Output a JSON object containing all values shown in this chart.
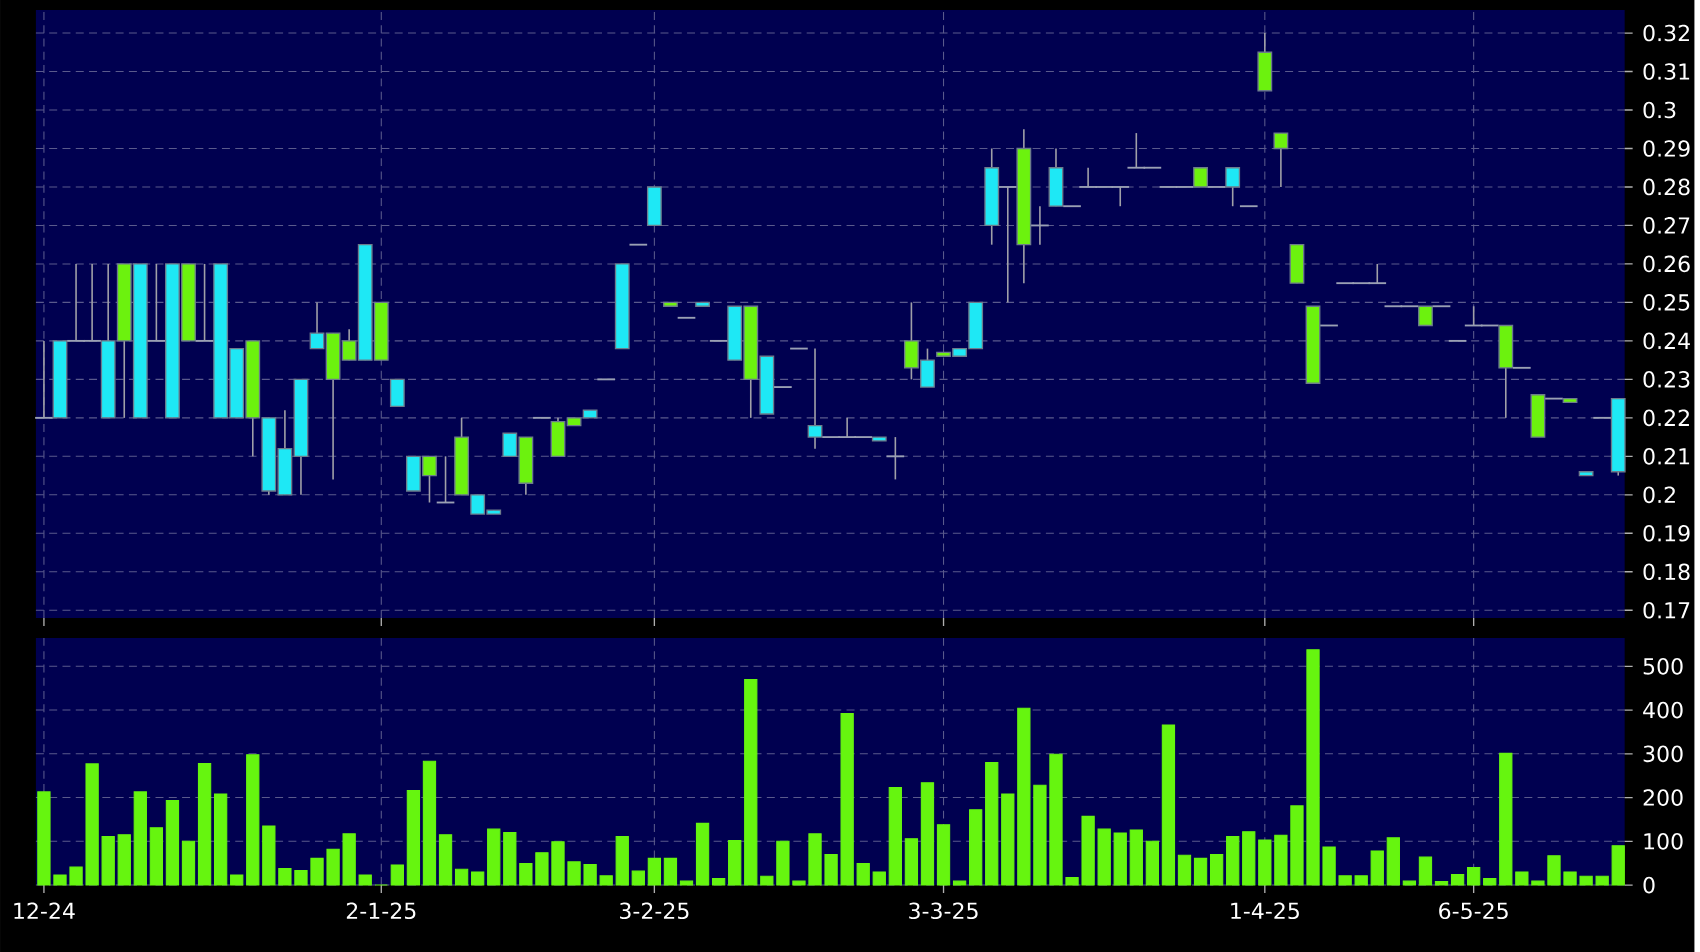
{
  "chart_data": [
    {
      "type": "candlestick",
      "categories": [
        null,
        null,
        null,
        null,
        null,
        null,
        null,
        null,
        null,
        null,
        null,
        null,
        null,
        null,
        null,
        null,
        null,
        null,
        null,
        null,
        null,
        null,
        null,
        null,
        null,
        null,
        null,
        null,
        null,
        null,
        null,
        null,
        null,
        null,
        null,
        null,
        null,
        null,
        null,
        null,
        null,
        null,
        null,
        null,
        null,
        null,
        null,
        null,
        null,
        null,
        null,
        null,
        null,
        null,
        null,
        null,
        null,
        null,
        null,
        null,
        null,
        null,
        null,
        null,
        null,
        null,
        null,
        null,
        null,
        null,
        null,
        null,
        null,
        null,
        null,
        null,
        null,
        null,
        null,
        null,
        null,
        null,
        null,
        null,
        null,
        null,
        null,
        null,
        null,
        null,
        null,
        null,
        null,
        null,
        null,
        null,
        null,
        null,
        null
      ],
      "ohlc": [
        [
          0.22,
          0.24,
          0.22,
          0.22
        ],
        [
          0.22,
          0.24,
          0.22,
          0.24
        ],
        [
          0.24,
          0.26,
          0.24,
          0.24
        ],
        [
          0.24,
          0.26,
          0.24,
          0.24
        ],
        [
          0.22,
          0.26,
          0.22,
          0.24
        ],
        [
          0.26,
          0.26,
          0.22,
          0.24
        ],
        [
          0.22,
          0.26,
          0.22,
          0.26
        ],
        [
          0.24,
          0.26,
          0.24,
          0.24
        ],
        [
          0.22,
          0.26,
          0.22,
          0.26
        ],
        [
          0.26,
          0.26,
          0.24,
          0.24
        ],
        [
          0.24,
          0.26,
          0.24,
          0.24
        ],
        [
          0.22,
          0.26,
          0.22,
          0.26
        ],
        [
          0.22,
          0.238,
          0.22,
          0.238
        ],
        [
          0.24,
          0.24,
          0.21,
          0.22
        ],
        [
          0.201,
          0.22,
          0.2,
          0.22
        ],
        [
          0.2,
          0.222,
          0.2,
          0.212
        ],
        [
          0.21,
          0.23,
          0.2,
          0.23
        ],
        [
          0.238,
          0.25,
          0.238,
          0.242
        ],
        [
          0.242,
          0.242,
          0.204,
          0.23
        ],
        [
          0.24,
          0.243,
          0.235,
          0.235
        ],
        [
          0.235,
          0.265,
          0.235,
          0.265
        ],
        [
          0.25,
          0.25,
          0.235,
          0.235
        ],
        [
          0.223,
          0.23,
          0.223,
          0.23
        ],
        [
          0.201,
          0.21,
          0.201,
          0.21
        ],
        [
          0.21,
          0.21,
          0.198,
          0.205
        ],
        [
          0.198,
          0.21,
          0.198,
          0.198
        ],
        [
          0.215,
          0.22,
          0.2,
          0.2
        ],
        [
          0.195,
          0.2,
          0.195,
          0.2
        ],
        [
          0.195,
          0.196,
          0.195,
          0.196
        ],
        [
          0.21,
          0.216,
          0.21,
          0.216
        ],
        [
          0.215,
          0.215,
          0.2,
          0.203
        ],
        [
          0.22,
          0.22,
          0.22,
          0.22
        ],
        [
          0.219,
          0.22,
          0.21,
          0.21
        ],
        [
          0.22,
          0.22,
          0.218,
          0.218
        ],
        [
          0.22,
          0.222,
          0.22,
          0.222
        ],
        [
          0.23,
          0.23,
          0.23,
          0.23
        ],
        [
          0.238,
          0.26,
          0.238,
          0.26
        ],
        [
          0.265,
          0.265,
          0.265,
          0.265
        ],
        [
          0.27,
          0.28,
          0.27,
          0.28
        ],
        [
          0.25,
          0.25,
          0.249,
          0.249
        ],
        [
          0.246,
          0.246,
          0.246,
          0.246
        ],
        [
          0.249,
          0.25,
          0.249,
          0.25
        ],
        [
          0.24,
          0.24,
          0.24,
          0.24
        ],
        [
          0.235,
          0.249,
          0.235,
          0.249
        ],
        [
          0.249,
          0.249,
          0.22,
          0.23
        ],
        [
          0.221,
          0.236,
          0.221,
          0.236
        ],
        [
          0.228,
          0.228,
          0.228,
          0.228
        ],
        [
          0.238,
          0.238,
          0.238,
          0.238
        ],
        [
          0.215,
          0.238,
          0.212,
          0.218
        ],
        [
          0.215,
          0.215,
          0.215,
          0.215
        ],
        [
          0.215,
          0.22,
          0.215,
          0.215
        ],
        [
          0.215,
          0.215,
          0.215,
          0.215
        ],
        [
          0.214,
          0.215,
          0.214,
          0.215
        ],
        [
          0.21,
          0.215,
          0.204,
          0.21
        ],
        [
          0.24,
          0.25,
          0.23,
          0.233
        ],
        [
          0.228,
          0.238,
          0.228,
          0.235
        ],
        [
          0.237,
          0.237,
          0.236,
          0.236
        ],
        [
          0.236,
          0.238,
          0.236,
          0.238
        ],
        [
          0.238,
          0.25,
          0.238,
          0.25
        ],
        [
          0.27,
          0.29,
          0.265,
          0.285
        ],
        [
          0.28,
          0.28,
          0.25,
          0.28
        ],
        [
          0.29,
          0.295,
          0.255,
          0.265
        ],
        [
          0.27,
          0.275,
          0.265,
          0.27
        ],
        [
          0.275,
          0.29,
          0.275,
          0.285
        ],
        [
          0.275,
          0.275,
          0.275,
          0.275
        ],
        [
          0.28,
          0.285,
          0.28,
          0.28
        ],
        [
          0.28,
          0.28,
          0.28,
          0.28
        ],
        [
          0.28,
          0.28,
          0.275,
          0.28
        ],
        [
          0.285,
          0.294,
          0.285,
          0.285
        ],
        [
          0.285,
          0.285,
          0.285,
          0.285
        ],
        [
          0.28,
          0.28,
          0.28,
          0.28
        ],
        [
          0.28,
          0.28,
          0.28,
          0.28
        ],
        [
          0.285,
          0.285,
          0.28,
          0.28
        ],
        [
          0.28,
          0.28,
          0.28,
          0.28
        ],
        [
          0.28,
          0.285,
          0.275,
          0.285
        ],
        [
          0.275,
          0.275,
          0.275,
          0.275
        ],
        [
          0.315,
          0.32,
          0.305,
          0.305
        ],
        [
          0.294,
          0.294,
          0.28,
          0.29
        ],
        [
          0.265,
          0.265,
          0.255,
          0.255
        ],
        [
          0.249,
          0.249,
          0.229,
          0.229
        ],
        [
          0.244,
          0.244,
          0.244,
          0.244
        ],
        [
          0.255,
          0.255,
          0.255,
          0.255
        ],
        [
          0.255,
          0.255,
          0.255,
          0.255
        ],
        [
          0.255,
          0.26,
          0.255,
          0.255
        ],
        [
          0.249,
          0.249,
          0.249,
          0.249
        ],
        [
          0.249,
          0.249,
          0.249,
          0.249
        ],
        [
          0.249,
          0.249,
          0.244,
          0.244
        ],
        [
          0.249,
          0.249,
          0.249,
          0.249
        ],
        [
          0.24,
          0.24,
          0.24,
          0.24
        ],
        [
          0.244,
          0.249,
          0.244,
          0.244
        ],
        [
          0.244,
          0.244,
          0.244,
          0.244
        ],
        [
          0.244,
          0.244,
          0.22,
          0.233
        ],
        [
          0.233,
          0.233,
          0.233,
          0.233
        ],
        [
          0.226,
          0.226,
          0.215,
          0.215
        ],
        [
          0.225,
          0.225,
          0.225,
          0.225
        ],
        [
          0.225,
          0.225,
          0.224,
          0.224
        ],
        [
          0.205,
          0.206,
          0.205,
          0.206
        ],
        [
          0.22,
          0.22,
          0.22,
          0.22
        ],
        [
          0.206,
          0.225,
          0.205,
          0.225
        ]
      ],
      "colors": [
        "#9aa0b4",
        "#1ee8f5",
        "#9aa0b4",
        "#9aa0b4",
        "#1ee8f5",
        "#6cf20e",
        "#1ee8f5",
        "#9aa0b4",
        "#1ee8f5",
        "#6cf20e",
        "#9aa0b4",
        "#1ee8f5",
        "#1ee8f5",
        "#6cf20e",
        "#1ee8f5",
        "#1ee8f5",
        "#1ee8f5",
        "#1ee8f5",
        "#6cf20e",
        "#6cf20e",
        "#1ee8f5",
        "#6cf20e",
        "#1ee8f5",
        "#1ee8f5",
        "#6cf20e",
        "#9aa0b4",
        "#6cf20e",
        "#1ee8f5",
        "#1ee8f5",
        "#1ee8f5",
        "#6cf20e",
        "#9aa0b4",
        "#6cf20e",
        "#6cf20e",
        "#1ee8f5",
        "#9aa0b4",
        "#1ee8f5",
        "#9aa0b4",
        "#1ee8f5",
        "#6cf20e",
        "#9aa0b4",
        "#1ee8f5",
        "#9aa0b4",
        "#1ee8f5",
        "#6cf20e",
        "#1ee8f5",
        "#9aa0b4",
        "#9aa0b4",
        "#1ee8f5",
        "#9aa0b4",
        "#9aa0b4",
        "#9aa0b4",
        "#1ee8f5",
        "#9aa0b4",
        "#6cf20e",
        "#1ee8f5",
        "#6cf20e",
        "#1ee8f5",
        "#1ee8f5",
        "#1ee8f5",
        "#9aa0b4",
        "#6cf20e",
        "#9aa0b4",
        "#1ee8f5",
        "#9aa0b4",
        "#9aa0b4",
        "#9aa0b4",
        "#9aa0b4",
        "#9aa0b4",
        "#9aa0b4",
        "#9aa0b4",
        "#9aa0b4",
        "#6cf20e",
        "#9aa0b4",
        "#1ee8f5",
        "#9aa0b4",
        "#6cf20e",
        "#6cf20e",
        "#6cf20e",
        "#6cf20e",
        "#9aa0b4",
        "#9aa0b4",
        "#9aa0b4",
        "#9aa0b4",
        "#9aa0b4",
        "#9aa0b4",
        "#6cf20e",
        "#9aa0b4",
        "#9aa0b4",
        "#9aa0b4",
        "#9aa0b4",
        "#6cf20e",
        "#9aa0b4",
        "#6cf20e",
        "#9aa0b4",
        "#6cf20e",
        "#1ee8f5",
        "#9aa0b4",
        "#1ee8f5"
      ],
      "ylim": [
        0.168,
        0.326
      ],
      "yticks": [
        0.17,
        0.18,
        0.19,
        0.2,
        0.21,
        0.22,
        0.23,
        0.24,
        0.25,
        0.26,
        0.27,
        0.28,
        0.29,
        0.3,
        0.31,
        0.32
      ],
      "grid": true,
      "tick_labels": "y"
    },
    {
      "type": "bar",
      "categories": [
        "12-24",
        null,
        null,
        null,
        null,
        null,
        null,
        null,
        null,
        null,
        null,
        null,
        null,
        null,
        null,
        null,
        null,
        null,
        null,
        null,
        null,
        "2-1-25",
        null,
        null,
        null,
        null,
        null,
        null,
        null,
        null,
        null,
        null,
        null,
        null,
        null,
        null,
        null,
        null,
        "3-2-25",
        null,
        null,
        null,
        null,
        null,
        null,
        null,
        null,
        null,
        null,
        null,
        null,
        null,
        null,
        null,
        null,
        null,
        "3-3-25",
        null,
        null,
        null,
        null,
        null,
        null,
        null,
        null,
        null,
        null,
        null,
        null,
        null,
        null,
        null,
        null,
        null,
        null,
        null,
        "1-4-25",
        null,
        null,
        null,
        null,
        null,
        null,
        null,
        null,
        null,
        null,
        null,
        null,
        "6-5-25",
        null,
        null,
        null,
        null,
        null,
        null,
        null,
        null,
        null
      ],
      "values": [
        213,
        23,
        41,
        277,
        111,
        115,
        213,
        131,
        193,
        100,
        278,
        208,
        23,
        298,
        135,
        38,
        33,
        61,
        82,
        117,
        23,
        0,
        46,
        216,
        283,
        115,
        36,
        30,
        128,
        120,
        49,
        74,
        99,
        53,
        47,
        21,
        111,
        32,
        61,
        61,
        9,
        141,
        15,
        102,
        470,
        20,
        100,
        9,
        117,
        70,
        392,
        49,
        30,
        223,
        106,
        234,
        138,
        9,
        172,
        280,
        208,
        404,
        228,
        299,
        17,
        157,
        128,
        119,
        126,
        100,
        366,
        68,
        61,
        70,
        111,
        122,
        103,
        114,
        181,
        538,
        87,
        21,
        21,
        78,
        108,
        9,
        64,
        8,
        24,
        40,
        15,
        301,
        30,
        9,
        67,
        30,
        20,
        20,
        90
      ],
      "color": "#66f50f",
      "ylim": [
        0,
        565
      ],
      "yticks": [
        0,
        100,
        200,
        300,
        400,
        500
      ],
      "grid": true
    }
  ]
}
